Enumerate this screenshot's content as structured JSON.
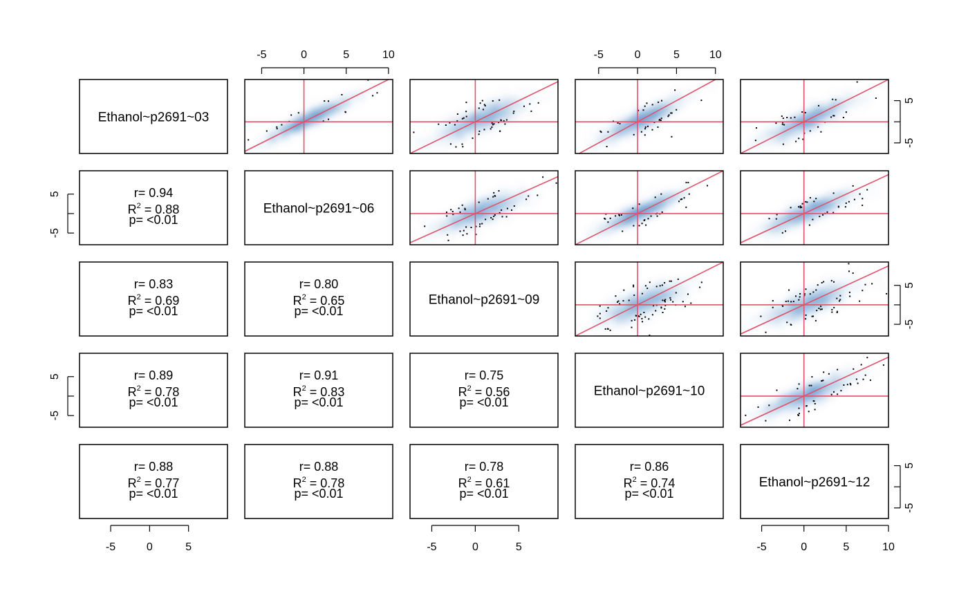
{
  "chart_data": {
    "type": "scatter",
    "layout": "scatterplot-matrix",
    "variables": [
      "Ethanol~p2691~03",
      "Ethanol~p2691~06",
      "Ethanol~p2691~09",
      "Ethanol~p2691~10",
      "Ethanol~p2691~12"
    ],
    "axes": {
      "variables": [
        {
          "lim": [
            -9,
            10
          ],
          "ticks": [
            -5,
            0,
            5
          ]
        },
        {
          "lim": [
            -7,
            10.5
          ],
          "ticks": [
            -5,
            0,
            5,
            10
          ]
        },
        {
          "lim": [
            -7.5,
            9.5
          ],
          "ticks": [
            -5,
            0,
            5
          ]
        },
        {
          "lim": [
            -8,
            11
          ],
          "ticks": [
            -5,
            0,
            5,
            10
          ]
        },
        {
          "lim": [
            -7.5,
            10
          ],
          "ticks": [
            -5,
            0,
            5,
            10
          ]
        }
      ],
      "row_lims": [
        [
          -7.5,
          10
        ],
        [
          -8,
          11
        ],
        [
          -8,
          11
        ],
        [
          -8,
          11
        ],
        [
          -7.5,
          10
        ]
      ],
      "top_ticks": {
        "columns": [
          1,
          3
        ],
        "values": [
          -5,
          0,
          5,
          10
        ]
      },
      "bottom_ticks": {
        "columns": [
          0,
          2,
          4
        ]
      },
      "left_ticks": {
        "rows": [
          1,
          3
        ],
        "values": [
          -5,
          0,
          5
        ]
      },
      "right_ticks": {
        "rows": [
          0,
          2,
          4
        ],
        "values": [
          -5,
          0,
          5
        ]
      }
    },
    "correlations": [
      {
        "row": 1,
        "col": 0,
        "r": "0.94",
        "R2": "0.88",
        "p": "<0.01"
      },
      {
        "row": 2,
        "col": 0,
        "r": "0.83",
        "R2": "0.69",
        "p": "<0.01"
      },
      {
        "row": 2,
        "col": 1,
        "r": "0.80",
        "R2": "0.65",
        "p": "<0.01"
      },
      {
        "row": 3,
        "col": 0,
        "r": "0.89",
        "R2": "0.78",
        "p": "<0.01"
      },
      {
        "row": 3,
        "col": 1,
        "r": "0.91",
        "R2": "0.83",
        "p": "<0.01"
      },
      {
        "row": 3,
        "col": 2,
        "r": "0.75",
        "R2": "0.56",
        "p": "<0.01"
      },
      {
        "row": 4,
        "col": 0,
        "r": "0.88",
        "R2": "0.77",
        "p": "<0.01"
      },
      {
        "row": 4,
        "col": 1,
        "r": "0.88",
        "R2": "0.78",
        "p": "<0.01"
      },
      {
        "row": 4,
        "col": 2,
        "r": "0.78",
        "R2": "0.61",
        "p": "<0.01"
      },
      {
        "row": 4,
        "col": 3,
        "r": "0.86",
        "R2": "0.74",
        "p": "<0.01"
      }
    ],
    "stat_labels": {
      "r": "r= ",
      "R2": "R",
      "R2_sup": "2",
      "R2_eq": " = ",
      "p": "p= "
    },
    "reference_lines": [
      "x = 0",
      "y = 0",
      "y = x"
    ],
    "colors": {
      "density": "#1565a8",
      "points": "#000000",
      "reference_lines": "#df536b",
      "frame": "#000000"
    },
    "grid": false,
    "legend": "none"
  }
}
